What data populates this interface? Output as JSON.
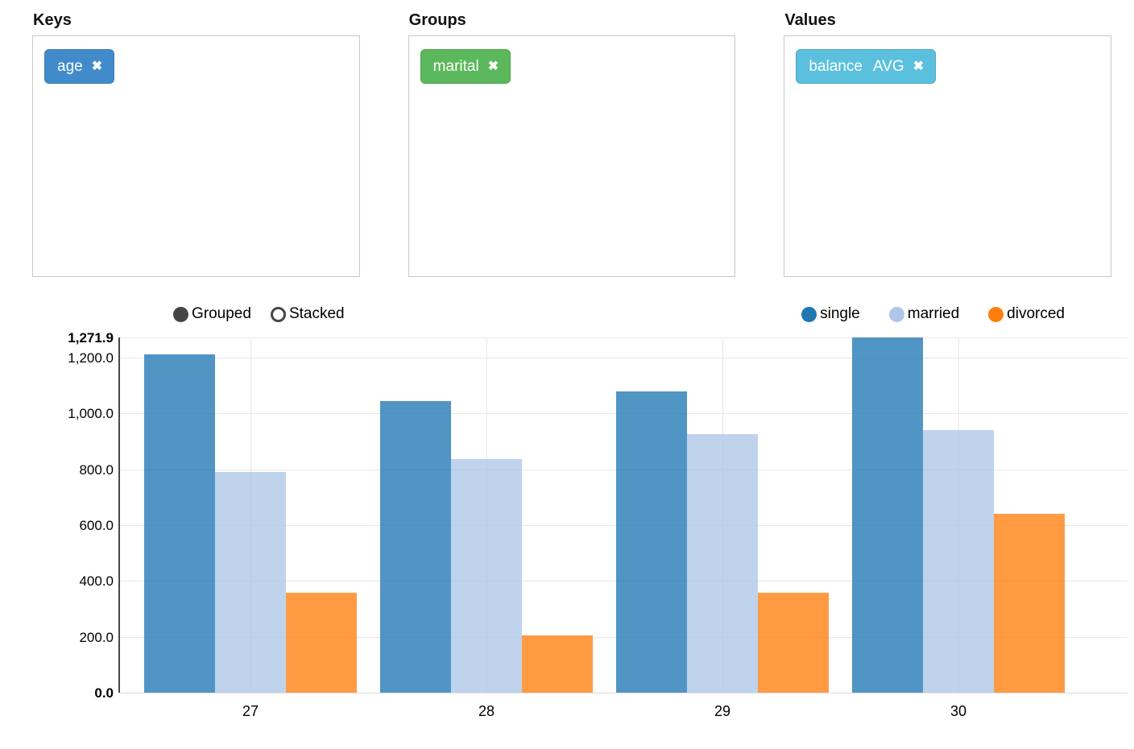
{
  "panels": [
    {
      "title": "Keys",
      "pill": {
        "field": "age",
        "agg": "",
        "color": "#428bca",
        "remove_icon": "✖"
      }
    },
    {
      "title": "Groups",
      "pill": {
        "field": "marital",
        "agg": "",
        "color": "#5cb85c",
        "remove_icon": "✖"
      }
    },
    {
      "title": "Values",
      "pill": {
        "field": "balance",
        "agg": "AVG",
        "color": "#5bc0de",
        "remove_icon": "✖"
      }
    }
  ],
  "chart_controls": {
    "options": [
      {
        "label": "Grouped",
        "selected": true
      },
      {
        "label": "Stacked",
        "selected": false
      }
    ]
  },
  "chart_data": {
    "type": "bar",
    "title": "",
    "xlabel": "",
    "ylabel": "",
    "categories": [
      "27",
      "28",
      "29",
      "30"
    ],
    "series": [
      {
        "name": "single",
        "color": "#1f77b4",
        "values": [
          1210,
          1045,
          1078,
          1271.9
        ]
      },
      {
        "name": "married",
        "color": "#aec7e8",
        "values": [
          790,
          835,
          925,
          940
        ]
      },
      {
        "name": "divorced",
        "color": "#ff7f0e",
        "values": [
          357,
          205,
          357,
          640
        ]
      }
    ],
    "ylim": [
      0,
      1271.9
    ],
    "y_ticks": [
      {
        "label": "0.0",
        "value": 0,
        "bold": true
      },
      {
        "label": "200.0",
        "value": 200,
        "bold": false
      },
      {
        "label": "400.0",
        "value": 400,
        "bold": false
      },
      {
        "label": "600.0",
        "value": 600,
        "bold": false
      },
      {
        "label": "800.0",
        "value": 800,
        "bold": false
      },
      {
        "label": "1,000.0",
        "value": 1000,
        "bold": false
      },
      {
        "label": "1,200.0",
        "value": 1200,
        "bold": false
      },
      {
        "label": "1,271.9",
        "value": 1271.9,
        "bold": true
      }
    ],
    "grid": true,
    "legend_position": "top-right"
  }
}
